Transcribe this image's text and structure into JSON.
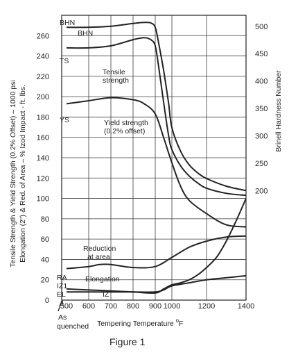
{
  "chart_data": {
    "type": "line",
    "title": "",
    "caption": "Figure 1",
    "xlabel": "Tempering Temperature °F",
    "xlabel_parts": [
      "Tempering Temperature ",
      "o",
      "F"
    ],
    "xlim": [
      500,
      1400
    ],
    "x_ticks": [
      "500",
      "600",
      "700",
      "800",
      "900",
      "1000",
      "1200",
      "1400"
    ],
    "x_tick_values": [
      500,
      600,
      700,
      800,
      900,
      1000,
      1200,
      1400
    ],
    "x_start_label": [
      "As",
      "quenched"
    ],
    "ylabel_left": [
      "Tensile Strength & Yield Strength (0.2% Offset) – 1000 psi",
      "Elongation (2\") & Red. of Area – % Izod Impact - ft. lbs."
    ],
    "ylim_left": [
      0,
      280
    ],
    "y_ticks_left": [
      0,
      20,
      40,
      60,
      80,
      100,
      120,
      140,
      160,
      180,
      200,
      220,
      240,
      260
    ],
    "ylabel_right": "Brinell Hardness Number",
    "ylim_right": [
      0,
      520
    ],
    "y_ticks_right": [
      200,
      250,
      300,
      350,
      400,
      450,
      500
    ],
    "grid": true,
    "series": [
      {
        "name": "BHN",
        "axis": "right",
        "start_label": "BHN",
        "x": [
          500,
          600,
          700,
          800,
          850,
          880,
          900,
          920,
          950,
          980,
          1000,
          1050,
          1100,
          1150,
          1200,
          1300,
          1400
        ],
        "y": [
          498,
          498,
          500,
          505,
          507,
          506,
          498,
          470,
          420,
          360,
          315,
          272,
          247,
          232,
          222,
          208,
          200
        ]
      },
      {
        "name": "Tensile strength",
        "axis": "left",
        "start_label": "TS",
        "x": [
          500,
          600,
          700,
          800,
          850,
          880,
          900,
          920,
          950,
          980,
          1000,
          1050,
          1100,
          1150,
          1200,
          1300,
          1400
        ],
        "y": [
          248,
          248,
          250,
          256,
          258,
          256,
          250,
          230,
          195,
          162,
          148,
          132,
          122,
          115,
          110,
          105,
          103
        ]
      },
      {
        "name": "Yield strength (0.2% offset)",
        "axis": "left",
        "start_label": "YS",
        "x": [
          500,
          600,
          700,
          800,
          850,
          900,
          950,
          1000,
          1050,
          1100,
          1200,
          1300,
          1400
        ],
        "y": [
          193,
          196,
          199,
          197,
          193,
          183,
          160,
          135,
          112,
          98,
          85,
          74,
          72
        ]
      },
      {
        "name": "Reduction at area",
        "axis": "left",
        "start_label": "RA",
        "x": [
          500,
          600,
          650,
          700,
          800,
          900,
          1000,
          1100,
          1200,
          1300,
          1400
        ],
        "y": [
          31,
          33,
          35,
          35,
          32,
          33,
          42,
          52,
          58,
          62,
          63
        ]
      },
      {
        "name": "Elongation",
        "axis": "left",
        "start_label": "EL",
        "x": [
          500,
          600,
          700,
          800,
          900,
          950,
          1000,
          1100,
          1200,
          1300,
          1400
        ],
        "y": [
          8,
          8,
          8,
          8,
          8,
          10,
          14,
          17,
          20,
          22,
          24
        ]
      },
      {
        "name": "IZ",
        "axis": "left",
        "start_label": "IZ1",
        "x": [
          500,
          600,
          700,
          800,
          900,
          950,
          1000,
          1050,
          1100,
          1150,
          1200,
          1250,
          1300,
          1350,
          1400
        ],
        "y": [
          11,
          10,
          9,
          8,
          7,
          11,
          15,
          17,
          20,
          25,
          32,
          42,
          58,
          78,
          100
        ]
      }
    ],
    "curve_labels": [
      {
        "series": 0,
        "text": [
          "BHN"
        ]
      },
      {
        "series": 1,
        "text": [
          "Tensile",
          "strength"
        ]
      },
      {
        "series": 2,
        "text": [
          "Yield strength",
          "(0.2% offset)"
        ]
      },
      {
        "series": 3,
        "text": [
          "Reduction",
          "at area"
        ]
      },
      {
        "series": 4,
        "text": [
          "Elongation"
        ]
      },
      {
        "series": 5,
        "text": [
          "IZ"
        ]
      }
    ]
  }
}
